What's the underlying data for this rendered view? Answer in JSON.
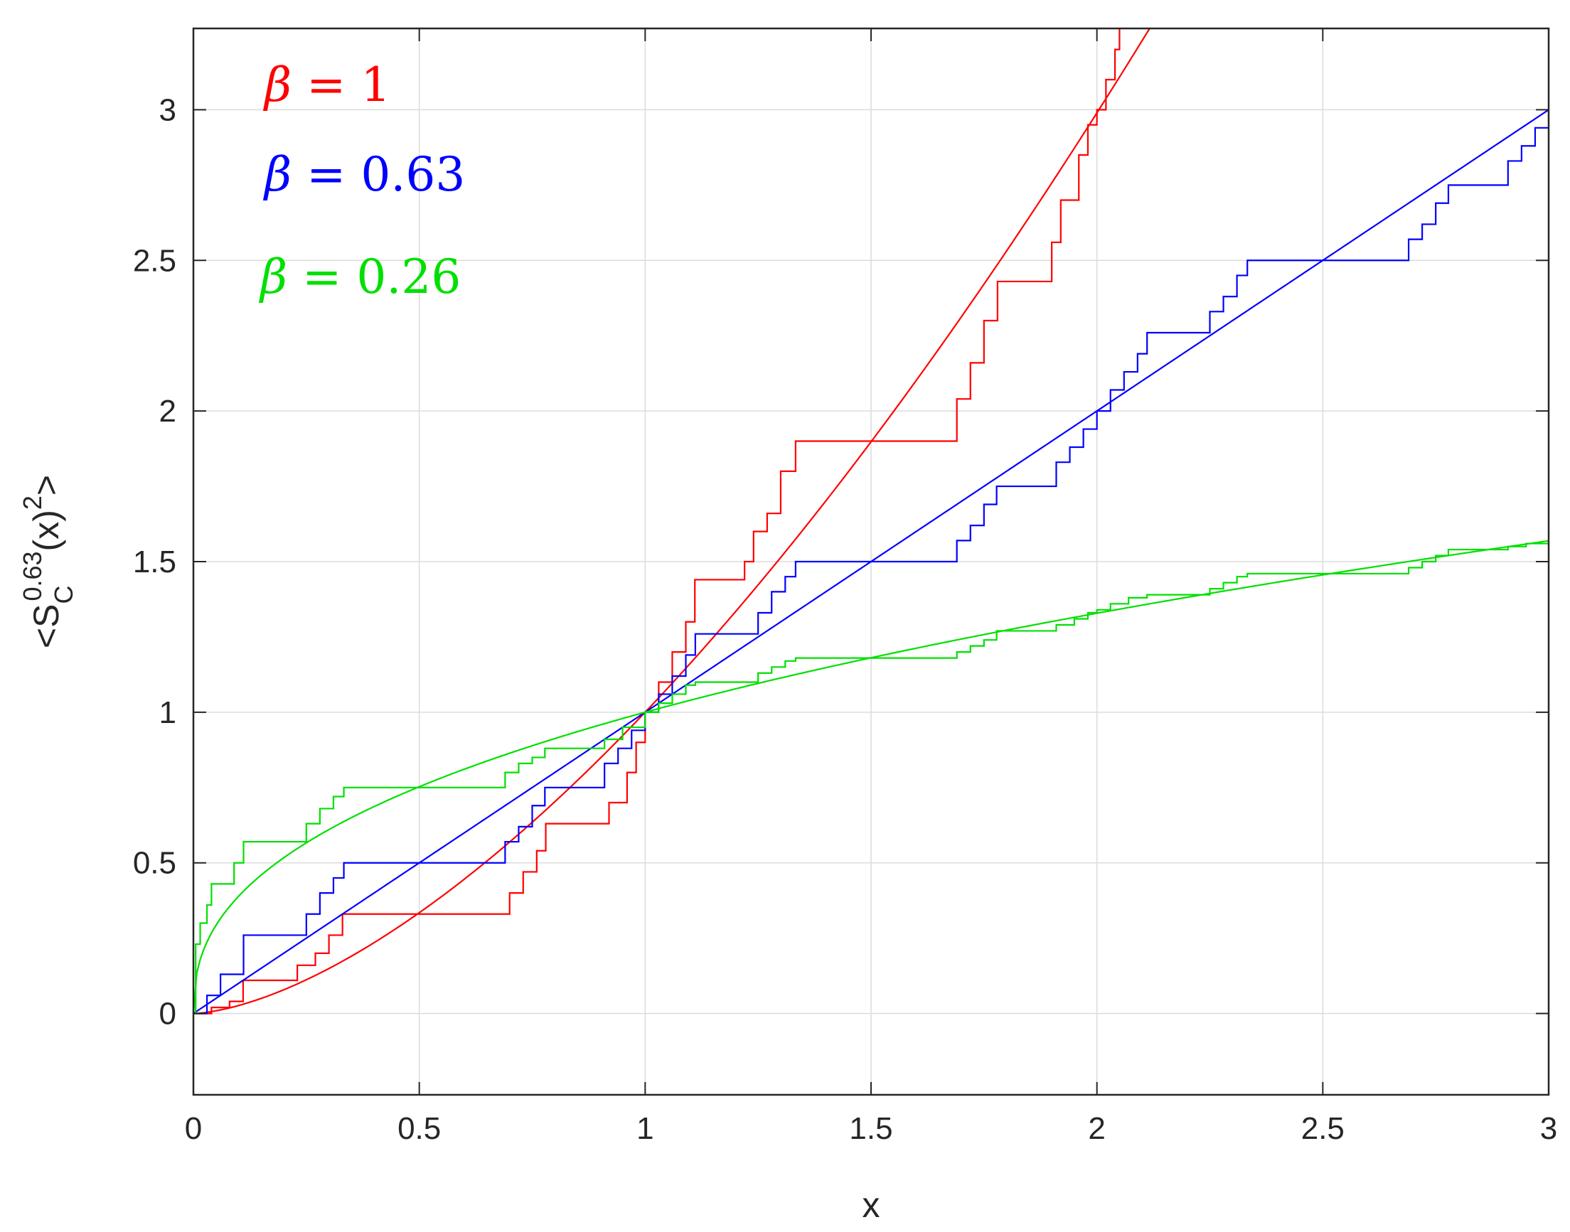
{
  "chart_data": {
    "type": "line",
    "xlabel": "x",
    "ylabel": {
      "prefix": "<S",
      "sub": "C",
      "sup": "0.63",
      "middle": "(x)",
      "sup2": "2",
      "suffix": ">"
    },
    "xlim": [
      0,
      3
    ],
    "ylim": [
      -0.27,
      3.27
    ],
    "xticks": [
      "0",
      "0.5",
      "1",
      "1.5",
      "2",
      "2.5",
      "3"
    ],
    "yticks": [
      "0",
      "0.5",
      "1",
      "1.5",
      "2",
      "2.5",
      "3"
    ],
    "grid": true,
    "legend_placement": "top-left",
    "legend": [
      {
        "symbol": "β",
        "text": " = 1",
        "color": "#ff0000"
      },
      {
        "symbol": "β",
        "text": " = 0.63",
        "color": "#0000ff"
      },
      {
        "symbol": "β",
        "text": " = 0.26",
        "color": "#00e000"
      }
    ],
    "series": [
      {
        "color": "#ff0000",
        "smooth_exponent": 1.58,
        "staircase": [
          [
            0,
            0
          ],
          [
            0.04,
            0.02
          ],
          [
            0.08,
            0.04
          ],
          [
            0.11,
            0.11
          ],
          [
            0.15,
            0.11
          ],
          [
            0.2,
            0.11
          ],
          [
            0.23,
            0.16
          ],
          [
            0.27,
            0.2
          ],
          [
            0.3,
            0.26
          ],
          [
            0.33,
            0.33
          ],
          [
            0.4,
            0.33
          ],
          [
            0.5,
            0.33
          ],
          [
            0.6,
            0.33
          ],
          [
            0.667,
            0.33
          ],
          [
            0.7,
            0.4
          ],
          [
            0.73,
            0.47
          ],
          [
            0.76,
            0.54
          ],
          [
            0.78,
            0.63
          ],
          [
            0.82,
            0.63
          ],
          [
            0.9,
            0.63
          ],
          [
            0.92,
            0.7
          ],
          [
            0.96,
            0.8
          ],
          [
            0.98,
            0.9
          ],
          [
            1,
            1
          ],
          [
            1.03,
            1.1
          ],
          [
            1.06,
            1.2
          ],
          [
            1.09,
            1.3
          ],
          [
            1.11,
            1.44
          ],
          [
            1.2,
            1.44
          ],
          [
            1.22,
            1.5
          ],
          [
            1.24,
            1.6
          ],
          [
            1.27,
            1.66
          ],
          [
            1.3,
            1.8
          ],
          [
            1.333,
            1.9
          ],
          [
            1.45,
            1.9
          ],
          [
            1.55,
            1.9
          ],
          [
            1.667,
            1.9
          ],
          [
            1.69,
            2.04
          ],
          [
            1.72,
            2.16
          ],
          [
            1.75,
            2.3
          ],
          [
            1.78,
            2.43
          ],
          [
            1.83,
            2.43
          ],
          [
            1.88,
            2.43
          ],
          [
            1.9,
            2.56
          ],
          [
            1.92,
            2.7
          ],
          [
            1.96,
            2.85
          ],
          [
            1.98,
            2.95
          ],
          [
            2.0,
            3.0
          ],
          [
            2.02,
            3.1
          ],
          [
            2.04,
            3.2
          ],
          [
            2.05,
            3.27
          ]
        ]
      },
      {
        "color": "#0000ff",
        "smooth_exponent": 1,
        "staircase": [
          [
            0,
            0
          ],
          [
            0.03,
            0.06
          ],
          [
            0.06,
            0.13
          ],
          [
            0.1,
            0.13
          ],
          [
            0.111,
            0.26
          ],
          [
            0.15,
            0.26
          ],
          [
            0.222,
            0.26
          ],
          [
            0.25,
            0.33
          ],
          [
            0.28,
            0.4
          ],
          [
            0.31,
            0.45
          ],
          [
            0.333,
            0.5
          ],
          [
            0.45,
            0.5
          ],
          [
            0.55,
            0.5
          ],
          [
            0.667,
            0.5
          ],
          [
            0.69,
            0.57
          ],
          [
            0.72,
            0.62
          ],
          [
            0.75,
            0.69
          ],
          [
            0.778,
            0.75
          ],
          [
            0.83,
            0.75
          ],
          [
            0.889,
            0.75
          ],
          [
            0.91,
            0.83
          ],
          [
            0.94,
            0.88
          ],
          [
            0.97,
            0.94
          ],
          [
            1,
            1
          ],
          [
            1.03,
            1.06
          ],
          [
            1.06,
            1.12
          ],
          [
            1.09,
            1.19
          ],
          [
            1.111,
            1.26
          ],
          [
            1.16,
            1.26
          ],
          [
            1.222,
            1.26
          ],
          [
            1.25,
            1.33
          ],
          [
            1.28,
            1.4
          ],
          [
            1.31,
            1.45
          ],
          [
            1.333,
            1.5
          ],
          [
            1.45,
            1.5
          ],
          [
            1.55,
            1.5
          ],
          [
            1.667,
            1.5
          ],
          [
            1.69,
            1.57
          ],
          [
            1.72,
            1.62
          ],
          [
            1.75,
            1.69
          ],
          [
            1.778,
            1.75
          ],
          [
            1.83,
            1.75
          ],
          [
            1.889,
            1.75
          ],
          [
            1.91,
            1.83
          ],
          [
            1.94,
            1.88
          ],
          [
            1.97,
            1.94
          ],
          [
            2.0,
            2.0
          ],
          [
            2.03,
            2.07
          ],
          [
            2.06,
            2.13
          ],
          [
            2.09,
            2.19
          ],
          [
            2.111,
            2.26
          ],
          [
            2.16,
            2.26
          ],
          [
            2.222,
            2.26
          ],
          [
            2.25,
            2.33
          ],
          [
            2.28,
            2.38
          ],
          [
            2.31,
            2.45
          ],
          [
            2.333,
            2.5
          ],
          [
            2.45,
            2.5
          ],
          [
            2.55,
            2.5
          ],
          [
            2.667,
            2.5
          ],
          [
            2.69,
            2.57
          ],
          [
            2.72,
            2.62
          ],
          [
            2.75,
            2.69
          ],
          [
            2.778,
            2.75
          ],
          [
            2.83,
            2.75
          ],
          [
            2.889,
            2.75
          ],
          [
            2.91,
            2.83
          ],
          [
            2.94,
            2.88
          ],
          [
            2.97,
            2.94
          ],
          [
            3.0,
            3.0
          ]
        ]
      },
      {
        "color": "#00e000",
        "smooth_exponent": 0.41,
        "staircase": [
          [
            0,
            0
          ],
          [
            0.005,
            0.23
          ],
          [
            0.015,
            0.3
          ],
          [
            0.03,
            0.36
          ],
          [
            0.04,
            0.43
          ],
          [
            0.07,
            0.43
          ],
          [
            0.09,
            0.5
          ],
          [
            0.111,
            0.57
          ],
          [
            0.16,
            0.57
          ],
          [
            0.222,
            0.57
          ],
          [
            0.25,
            0.63
          ],
          [
            0.28,
            0.68
          ],
          [
            0.31,
            0.72
          ],
          [
            0.333,
            0.75
          ],
          [
            0.45,
            0.75
          ],
          [
            0.55,
            0.75
          ],
          [
            0.667,
            0.75
          ],
          [
            0.69,
            0.8
          ],
          [
            0.72,
            0.83
          ],
          [
            0.75,
            0.85
          ],
          [
            0.778,
            0.88
          ],
          [
            0.83,
            0.88
          ],
          [
            0.889,
            0.88
          ],
          [
            0.91,
            0.91
          ],
          [
            0.95,
            0.95
          ],
          [
            1,
            1
          ],
          [
            1.03,
            1.03
          ],
          [
            1.06,
            1.06
          ],
          [
            1.09,
            1.09
          ],
          [
            1.111,
            1.1
          ],
          [
            1.16,
            1.1
          ],
          [
            1.222,
            1.1
          ],
          [
            1.25,
            1.13
          ],
          [
            1.28,
            1.15
          ],
          [
            1.31,
            1.17
          ],
          [
            1.333,
            1.18
          ],
          [
            1.45,
            1.18
          ],
          [
            1.55,
            1.18
          ],
          [
            1.667,
            1.18
          ],
          [
            1.69,
            1.2
          ],
          [
            1.72,
            1.22
          ],
          [
            1.75,
            1.24
          ],
          [
            1.778,
            1.27
          ],
          [
            1.83,
            1.27
          ],
          [
            1.889,
            1.27
          ],
          [
            1.91,
            1.29
          ],
          [
            1.95,
            1.31
          ],
          [
            1.98,
            1.33
          ],
          [
            2.0,
            1.34
          ],
          [
            2.03,
            1.36
          ],
          [
            2.07,
            1.38
          ],
          [
            2.111,
            1.39
          ],
          [
            2.16,
            1.39
          ],
          [
            2.222,
            1.39
          ],
          [
            2.25,
            1.41
          ],
          [
            2.28,
            1.43
          ],
          [
            2.31,
            1.45
          ],
          [
            2.333,
            1.46
          ],
          [
            2.45,
            1.46
          ],
          [
            2.55,
            1.46
          ],
          [
            2.667,
            1.46
          ],
          [
            2.69,
            1.48
          ],
          [
            2.72,
            1.5
          ],
          [
            2.75,
            1.52
          ],
          [
            2.778,
            1.54
          ],
          [
            2.83,
            1.54
          ],
          [
            2.889,
            1.54
          ],
          [
            2.91,
            1.55
          ],
          [
            2.95,
            1.56
          ],
          [
            3.0,
            1.57
          ]
        ]
      }
    ]
  }
}
